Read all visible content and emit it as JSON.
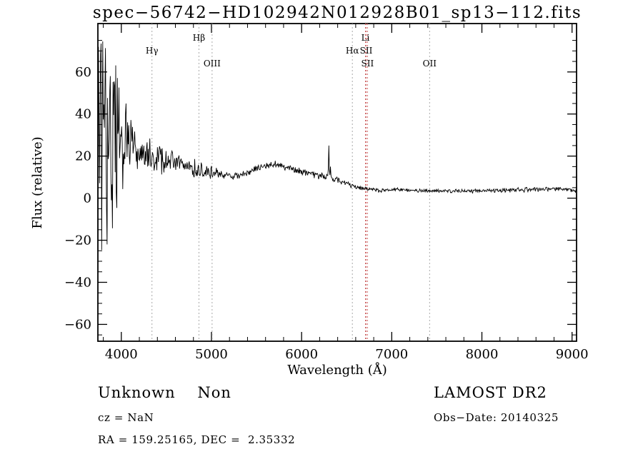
{
  "title": "spec−56742−HD102942N012928B01_sp13−112.fits",
  "footer": {
    "class_label": "Unknown    Non",
    "cz": "cz = NaN",
    "radec": "RA = 159.25165, DEC =  2.35332",
    "survey": "LAMOST DR2",
    "obs_date": "Obs−Date: 20140325"
  },
  "chart_data": {
    "type": "line",
    "title": "spec−56742−HD102942N012928B01_sp13−112.fits",
    "xlabel": "Wavelength (Å)",
    "ylabel": "Flux (relative)",
    "xlim": [
      3740,
      9050
    ],
    "ylim": [
      -68,
      83
    ],
    "xticks": [
      4000,
      5000,
      6000,
      7000,
      8000,
      9000
    ],
    "x_minor_step": 200,
    "yticks": [
      -60,
      -40,
      -20,
      0,
      20,
      40,
      60
    ],
    "y_minor_step": 5,
    "grid": false,
    "line_color": "#000000",
    "legend": null,
    "spectral_lines": [
      {
        "label": "Hγ",
        "wavelength": 4340,
        "color": "#a9a9a9",
        "label_row": 1
      },
      {
        "label": "Hβ",
        "wavelength": 4861,
        "color": "#a9a9a9",
        "label_row": 0
      },
      {
        "label": "OIII",
        "wavelength": 5007,
        "color": "#a9a9a9",
        "label_row": 2
      },
      {
        "label": "Hα",
        "wavelength": 6563,
        "color": "#a9a9a9",
        "label_row": 1
      },
      {
        "label": "Li",
        "wavelength": 6708,
        "color": "#d06c6c",
        "label_row": 0
      },
      {
        "label": "SII",
        "wavelength": 6716,
        "color": "#d06c6c",
        "label_row": 1
      },
      {
        "label": "SII",
        "wavelength": 6731,
        "color": "#d06c6c",
        "label_row": 2
      },
      {
        "label": "OII",
        "wavelength": 7420,
        "color": "#a9a9a9",
        "label_row": 2
      }
    ],
    "spectrum": {
      "sample_step": 6,
      "seed": 20140325,
      "baseline": [
        [
          3740,
          28
        ],
        [
          3800,
          26
        ],
        [
          3900,
          27
        ],
        [
          4000,
          28
        ],
        [
          4050,
          27
        ],
        [
          4100,
          25
        ],
        [
          4150,
          23
        ],
        [
          4200,
          21
        ],
        [
          4300,
          20
        ],
        [
          4400,
          19
        ],
        [
          4500,
          18
        ],
        [
          4600,
          17
        ],
        [
          4700,
          16
        ],
        [
          4800,
          14
        ],
        [
          4900,
          13
        ],
        [
          5000,
          12
        ],
        [
          5100,
          11.5
        ],
        [
          5200,
          11
        ],
        [
          5300,
          11
        ],
        [
          5400,
          12
        ],
        [
          5500,
          14
        ],
        [
          5600,
          15.5
        ],
        [
          5650,
          16
        ],
        [
          5700,
          16
        ],
        [
          5800,
          15
        ],
        [
          5900,
          13.5
        ],
        [
          6000,
          12.5
        ],
        [
          6100,
          11.5
        ],
        [
          6200,
          10.5
        ],
        [
          6300,
          9.5
        ],
        [
          6400,
          8.5
        ],
        [
          6500,
          7
        ],
        [
          6550,
          6
        ],
        [
          6600,
          5.5
        ],
        [
          6700,
          4.5
        ],
        [
          6800,
          4.2
        ],
        [
          6870,
          3.4
        ],
        [
          6950,
          4
        ],
        [
          7100,
          4
        ],
        [
          7300,
          3.6
        ],
        [
          7500,
          3.4
        ],
        [
          7700,
          3.4
        ],
        [
          8000,
          3.5
        ],
        [
          8300,
          3.8
        ],
        [
          8600,
          4.2
        ],
        [
          8800,
          4.5
        ],
        [
          8900,
          4.2
        ],
        [
          9050,
          3.2
        ]
      ],
      "noise_amp": [
        [
          3740,
          68
        ],
        [
          3800,
          62
        ],
        [
          3850,
          55
        ],
        [
          3900,
          48
        ],
        [
          3950,
          40
        ],
        [
          4000,
          30
        ],
        [
          4050,
          20
        ],
        [
          4100,
          14
        ],
        [
          4150,
          10
        ],
        [
          4200,
          8.5
        ],
        [
          4300,
          8
        ],
        [
          4400,
          7
        ],
        [
          4500,
          6
        ],
        [
          4600,
          5
        ],
        [
          4700,
          4.5
        ],
        [
          4800,
          4
        ],
        [
          4900,
          3.5
        ],
        [
          5000,
          2.8
        ],
        [
          5100,
          2.2
        ],
        [
          5200,
          1.8
        ],
        [
          5400,
          1.6
        ],
        [
          5700,
          1.6
        ],
        [
          6000,
          1.5
        ],
        [
          6300,
          1.5
        ],
        [
          6500,
          1.3
        ],
        [
          6700,
          1.1
        ],
        [
          7000,
          0.85
        ],
        [
          7500,
          0.85
        ],
        [
          8000,
          0.85
        ],
        [
          8500,
          0.95
        ],
        [
          9050,
          1.05
        ]
      ],
      "emission_spikes": [
        [
          6300,
          25
        ],
        [
          6320,
          15
        ]
      ]
    }
  }
}
